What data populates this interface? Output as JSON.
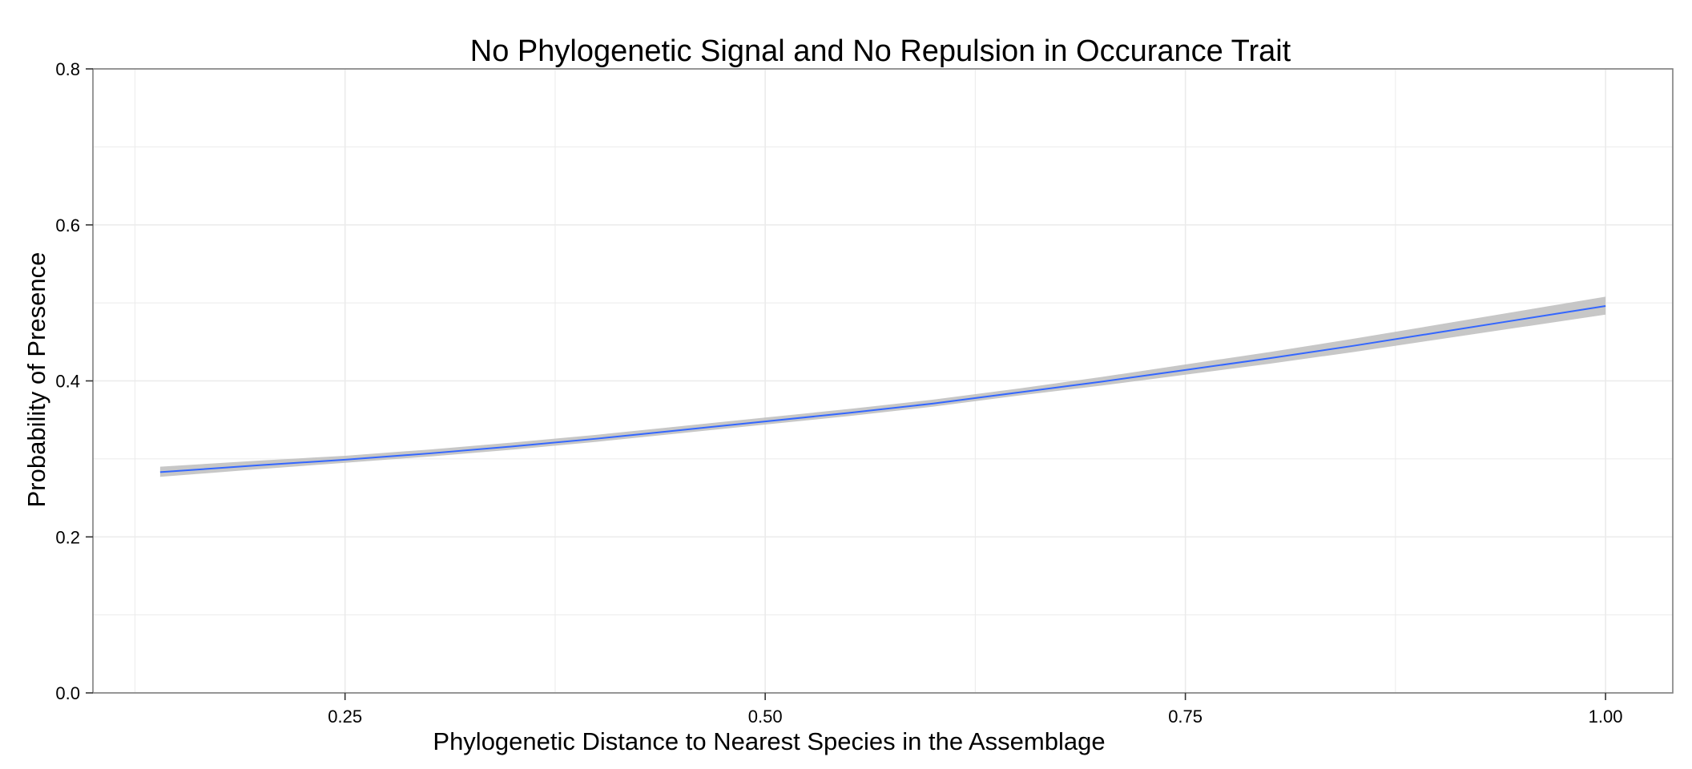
{
  "chart_data": {
    "type": "line",
    "title": "No Phylogenetic Signal and No Repulsion in Occurance Trait",
    "xlabel": "Phylogenetic Distance to Nearest Species in the Assemblage",
    "ylabel": "Probability of Presence",
    "xlim": [
      0.1,
      1.04
    ],
    "ylim": [
      0.0,
      0.8
    ],
    "x_ticks": [
      0.25,
      0.5,
      0.75,
      1.0
    ],
    "x_tick_labels": [
      "0.25",
      "0.50",
      "0.75",
      "1.00"
    ],
    "y_ticks": [
      0.0,
      0.2,
      0.4,
      0.6,
      0.8
    ],
    "y_tick_labels": [
      "0.0",
      "0.2",
      "0.4",
      "0.6",
      "0.8"
    ],
    "grid": true,
    "legend": "none",
    "colors": {
      "line": "#3366ff",
      "ribbon": "#bdbdbd",
      "grid": "#ebebeb",
      "panel_border": "#7f7f7f"
    },
    "series": [
      {
        "x": [
          0.14,
          0.2,
          0.25,
          0.3,
          0.35,
          0.4,
          0.45,
          0.5,
          0.55,
          0.6,
          0.65,
          0.7,
          0.75,
          0.8,
          0.85,
          0.9,
          0.95,
          1.0
        ],
        "values": [
          0.283,
          0.292,
          0.299,
          0.307,
          0.316,
          0.326,
          0.337,
          0.348,
          0.359,
          0.371,
          0.385,
          0.399,
          0.414,
          0.429,
          0.445,
          0.462,
          0.479,
          0.496
        ],
        "lower": [
          0.277,
          0.287,
          0.295,
          0.303,
          0.312,
          0.322,
          0.333,
          0.344,
          0.355,
          0.367,
          0.381,
          0.394,
          0.408,
          0.422,
          0.437,
          0.453,
          0.469,
          0.485
        ],
        "upper": [
          0.29,
          0.298,
          0.304,
          0.312,
          0.321,
          0.331,
          0.342,
          0.353,
          0.364,
          0.376,
          0.39,
          0.405,
          0.421,
          0.437,
          0.454,
          0.472,
          0.49,
          0.508
        ]
      }
    ]
  }
}
